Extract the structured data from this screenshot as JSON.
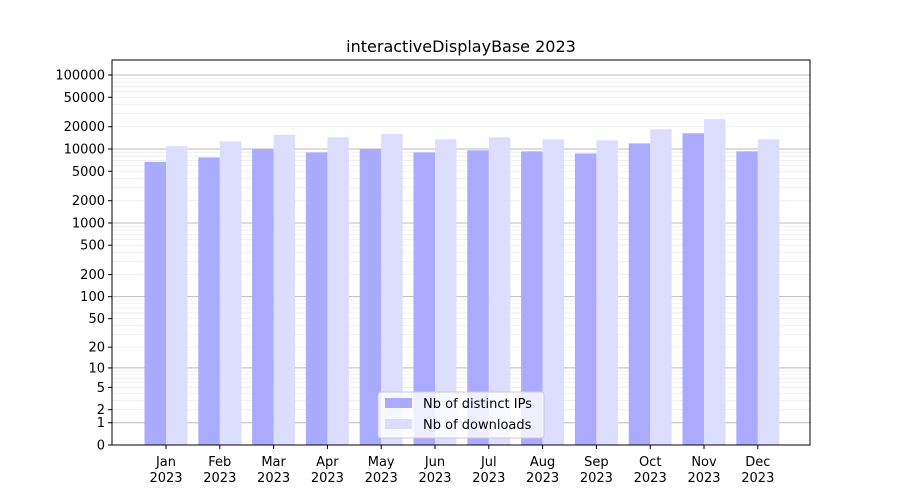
{
  "chart_data": {
    "type": "bar",
    "title": "interactiveDisplayBase 2023",
    "xlabel": "",
    "ylabel": "",
    "yscale": "log(1+y)",
    "ylim": [
      0,
      130000
    ],
    "grid": true,
    "legend_position": "bottom-center",
    "categories": [
      "Jan\n2023",
      "Feb\n2023",
      "Mar\n2023",
      "Apr\n2023",
      "May\n2023",
      "Jun\n2023",
      "Jul\n2023",
      "Aug\n2023",
      "Sep\n2023",
      "Oct\n2023",
      "Nov\n2023",
      "Dec\n2023"
    ],
    "yticks": [
      0,
      1,
      2,
      5,
      10,
      20,
      50,
      100,
      200,
      500,
      1000,
      2000,
      5000,
      10000,
      20000,
      50000,
      100000
    ],
    "series": [
      {
        "name": "Nb of distinct IPs",
        "color": "#aaaaff",
        "values": [
          6700,
          7700,
          9900,
          9000,
          10000,
          9000,
          9600,
          9300,
          8700,
          11900,
          16300,
          9300
        ]
      },
      {
        "name": "Nb of downloads",
        "color": "#ddddff",
        "values": [
          10900,
          12700,
          15500,
          14400,
          15900,
          13500,
          14400,
          13500,
          13100,
          18500,
          25300,
          13500
        ]
      }
    ]
  }
}
